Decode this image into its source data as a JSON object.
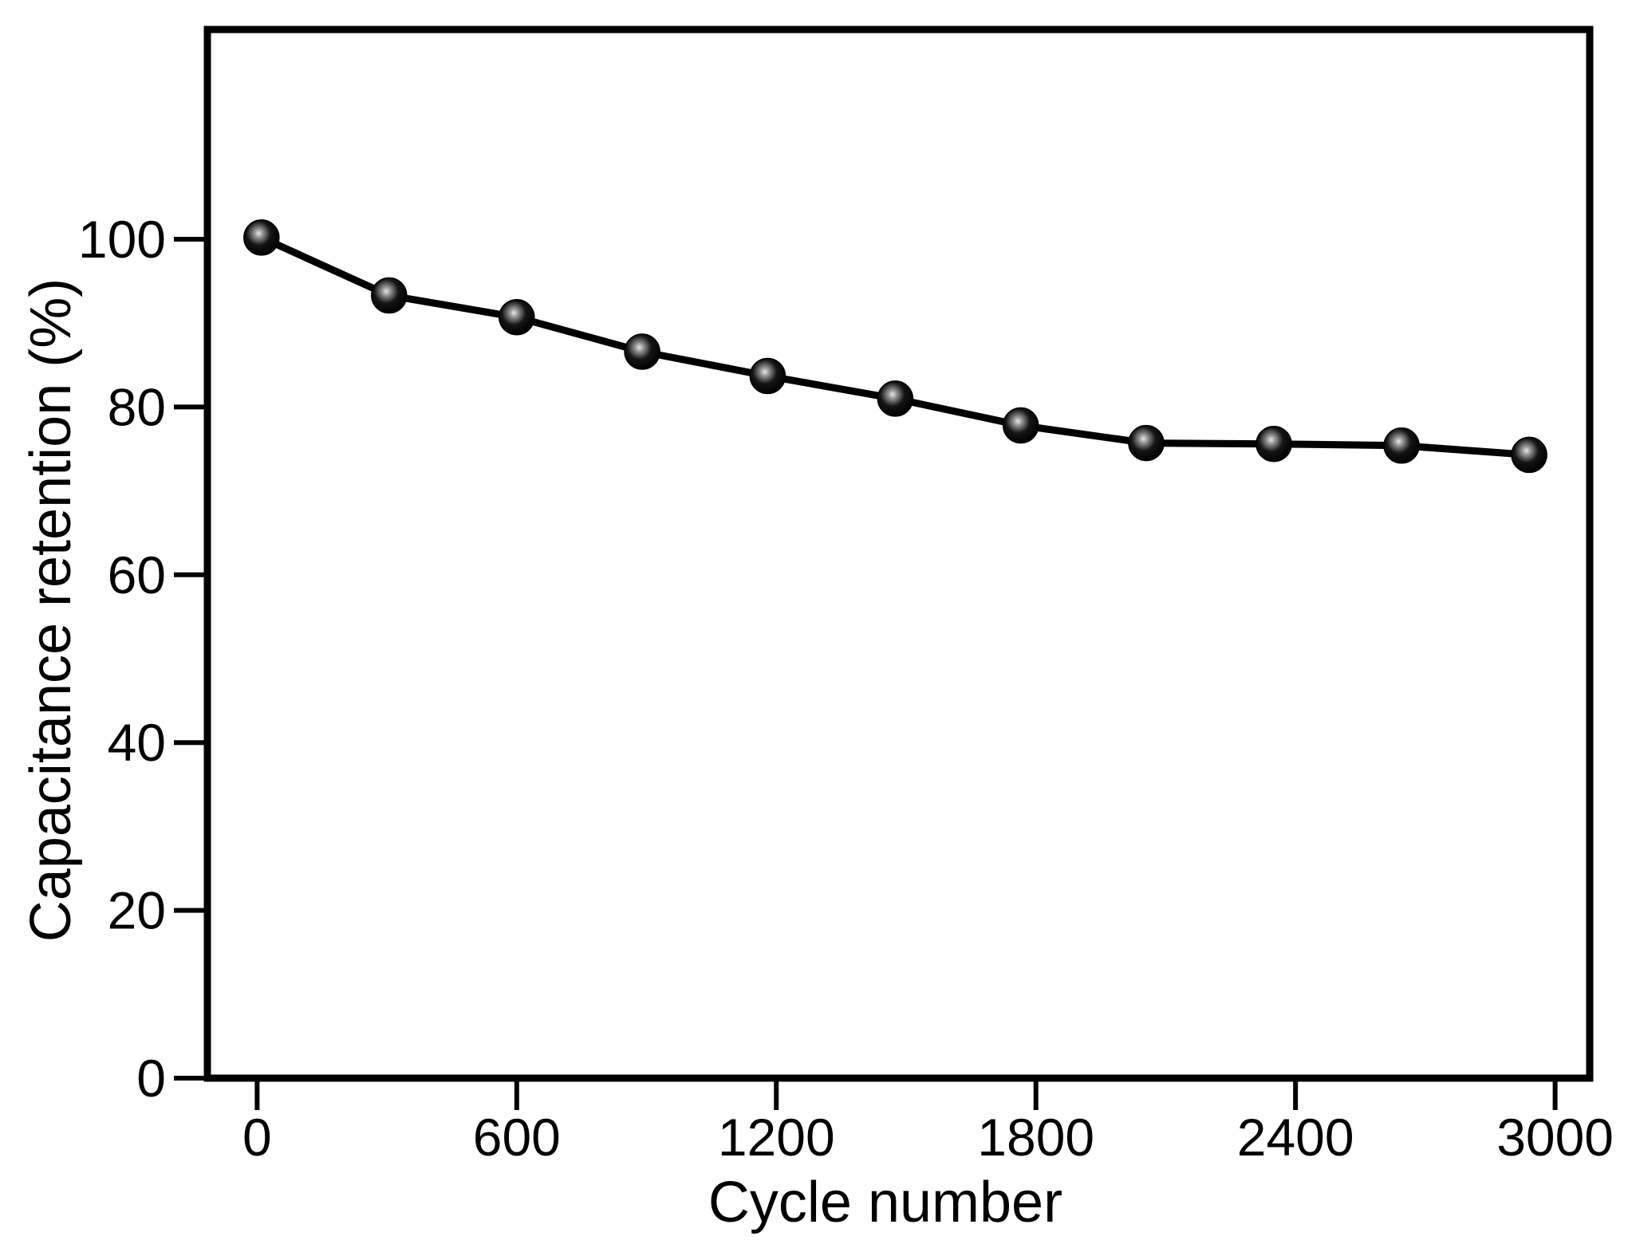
{
  "figure": {
    "background": "#ffffff",
    "ink_color": "#000000",
    "marker_highlight_color": "#e0e0e0"
  },
  "chart_data": {
    "type": "line",
    "title": "",
    "xlabel": "Cycle number",
    "ylabel": "Capacitance retention (%)",
    "xlim": [
      -115,
      3080
    ],
    "ylim": [
      0,
      125
    ],
    "x_ticks": [
      0,
      600,
      1200,
      1800,
      2400,
      3000
    ],
    "y_ticks": [
      0,
      20,
      40,
      60,
      80,
      100
    ],
    "grid": false,
    "legend": false,
    "series": [
      {
        "name": "Capacitance retention",
        "marker": "sphere-3d",
        "line_color": "#000000",
        "points": [
          {
            "x": 10,
            "y": 100.2
          },
          {
            "x": 305,
            "y": 93.3
          },
          {
            "x": 600,
            "y": 90.7
          },
          {
            "x": 890,
            "y": 86.6
          },
          {
            "x": 1180,
            "y": 83.7
          },
          {
            "x": 1475,
            "y": 81.0
          },
          {
            "x": 1765,
            "y": 77.8
          },
          {
            "x": 2055,
            "y": 75.7
          },
          {
            "x": 2350,
            "y": 75.6
          },
          {
            "x": 2645,
            "y": 75.4
          },
          {
            "x": 2940,
            "y": 74.3
          }
        ]
      }
    ]
  }
}
